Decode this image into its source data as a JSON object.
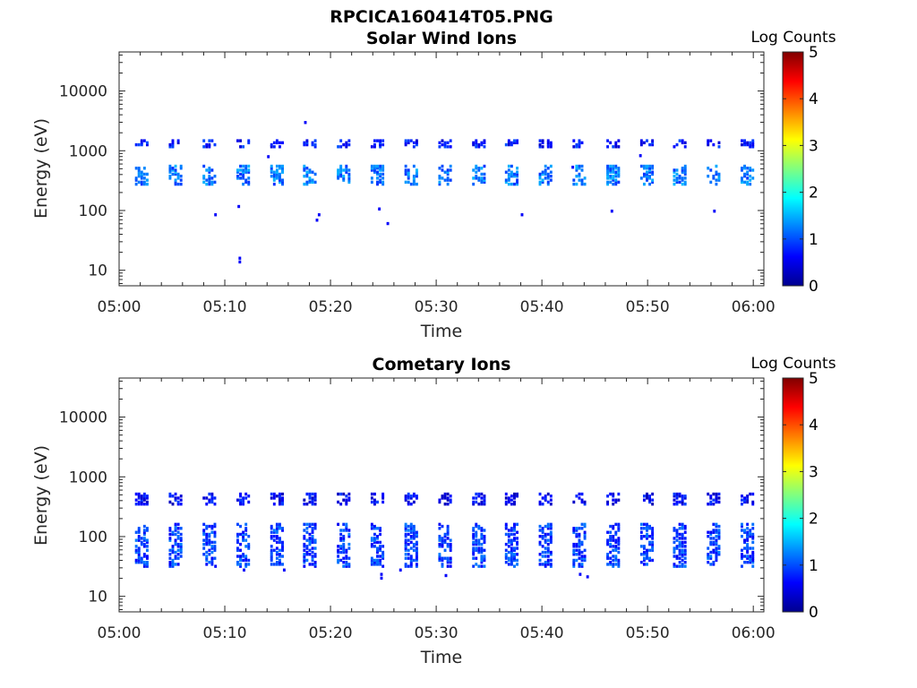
{
  "figure_title": "RPCICA160414T05.PNG",
  "colorbar": {
    "label": "Log Counts",
    "ticks": [
      "0",
      "1",
      "2",
      "3",
      "4",
      "5"
    ],
    "range": [
      0,
      5
    ],
    "colormap": "jet"
  },
  "chart_data": [
    {
      "type": "heatmap",
      "title": "Solar Wind Ions",
      "xlabel": "Time",
      "ylabel": "Energy (eV)",
      "x_ticks": [
        "05:00",
        "05:10",
        "05:20",
        "05:30",
        "05:40",
        "05:50",
        "06:00"
      ],
      "xlim_minutes": [
        0,
        61
      ],
      "y_ticks": [
        "10",
        "100",
        "1000",
        "10000"
      ],
      "y_scale": "log",
      "ylim": [
        5.5,
        45000
      ],
      "scan_start_minutes": [
        1.5,
        4.7,
        7.9,
        11.1,
        14.3,
        17.4,
        20.6,
        23.8,
        27.0,
        30.2,
        33.4,
        36.5,
        39.7,
        42.9,
        46.1,
        49.3,
        52.4,
        55.6,
        58.8
      ],
      "bands": [
        {
          "energy_min": 1100,
          "energy_max": 1450,
          "level": 0.7
        },
        {
          "energy_min": 260,
          "energy_max": 560,
          "level": 1.2
        }
      ],
      "outliers": [
        {
          "t": 14.0,
          "e": 750
        },
        {
          "t": 17.5,
          "e": 2800
        },
        {
          "t": 11.2,
          "e": 110
        },
        {
          "t": 11.3,
          "e": 15
        },
        {
          "t": 11.3,
          "e": 13
        },
        {
          "t": 9.0,
          "e": 80
        },
        {
          "t": 18.8,
          "e": 80
        },
        {
          "t": 18.6,
          "e": 65
        },
        {
          "t": 24.5,
          "e": 100
        },
        {
          "t": 25.3,
          "e": 57
        },
        {
          "t": 38.0,
          "e": 80
        },
        {
          "t": 46.5,
          "e": 92
        },
        {
          "t": 56.2,
          "e": 92
        },
        {
          "t": 49.2,
          "e": 780
        },
        {
          "t": 42.8,
          "e": 500
        }
      ]
    },
    {
      "type": "heatmap",
      "title": "Cometary Ions",
      "xlabel": "Time",
      "ylabel": "Energy (eV)",
      "x_ticks": [
        "05:00",
        "05:10",
        "05:20",
        "05:30",
        "05:40",
        "05:50",
        "06:00"
      ],
      "xlim_minutes": [
        0,
        61
      ],
      "y_ticks": [
        "10",
        "100",
        "1000",
        "10000"
      ],
      "y_scale": "log",
      "ylim": [
        5.5,
        45000
      ],
      "scan_start_minutes": [
        1.5,
        4.7,
        7.9,
        11.1,
        14.3,
        17.4,
        20.6,
        23.8,
        27.0,
        30.2,
        33.4,
        36.5,
        39.7,
        42.9,
        46.1,
        49.3,
        52.4,
        55.6,
        58.8
      ],
      "bands": [
        {
          "energy_min": 330,
          "energy_max": 520,
          "level": 0.6
        },
        {
          "energy_min": 30,
          "energy_max": 160,
          "level": 0.9
        }
      ],
      "outliers": [
        {
          "t": 24.7,
          "e": 22
        },
        {
          "t": 24.7,
          "e": 19
        },
        {
          "t": 30.8,
          "e": 21
        },
        {
          "t": 43.5,
          "e": 22
        },
        {
          "t": 44.2,
          "e": 20
        },
        {
          "t": 9.0,
          "e": 30
        },
        {
          "t": 11.7,
          "e": 26
        },
        {
          "t": 15.5,
          "e": 26
        },
        {
          "t": 26.5,
          "e": 26
        }
      ]
    }
  ]
}
